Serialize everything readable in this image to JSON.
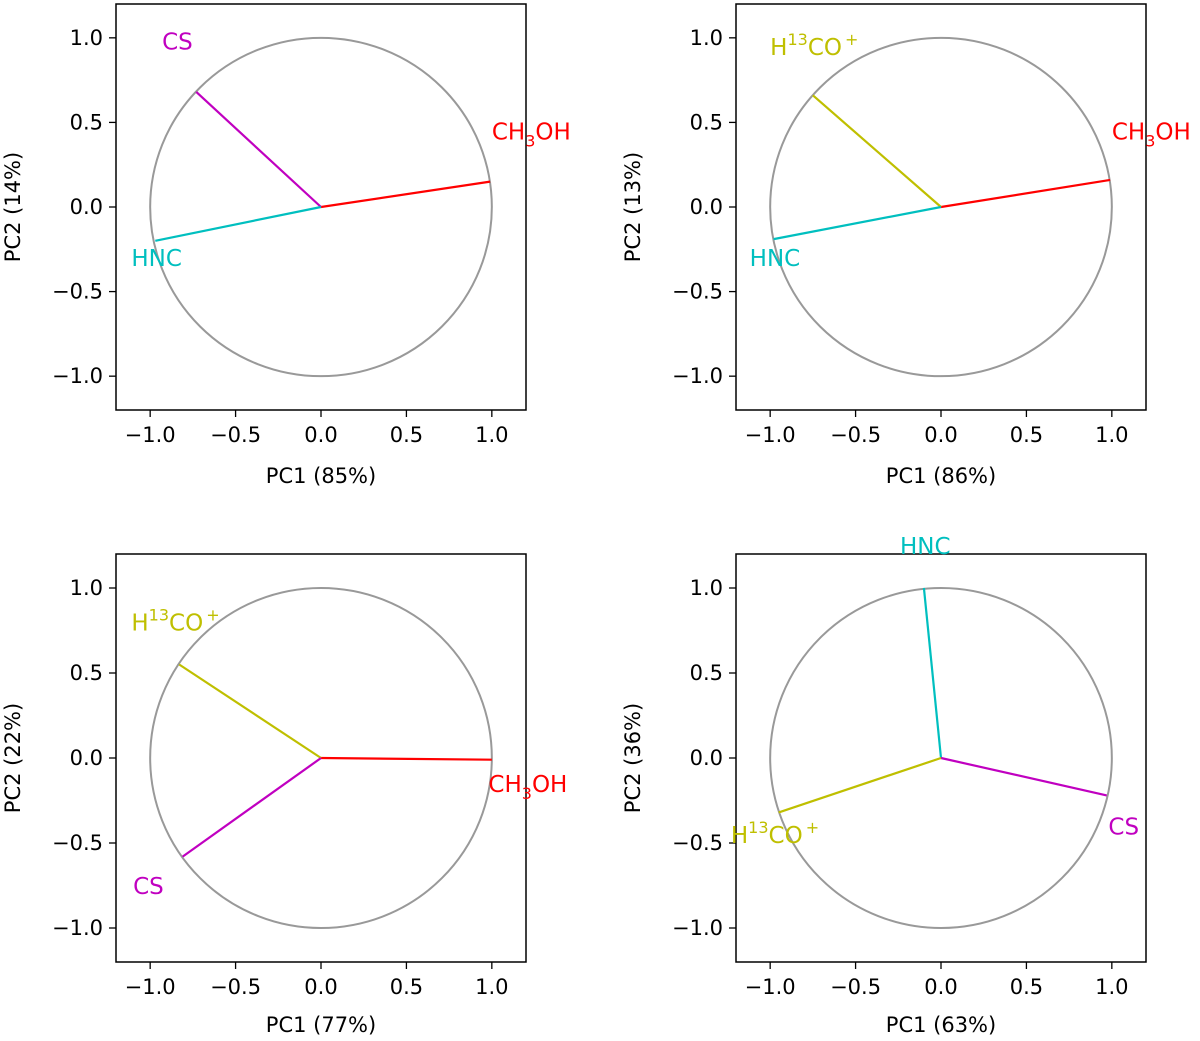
{
  "chart_data": [
    {
      "type": "line",
      "xlabel": "PC1 (85%)",
      "ylabel": "PC2 (14%)",
      "xlim": [
        -1.2,
        1.2
      ],
      "ylim": [
        -1.2,
        1.2
      ],
      "xticks": [
        -1.0,
        -0.5,
        0.0,
        0.5,
        1.0
      ],
      "yticks": [
        -1.0,
        -0.5,
        0.0,
        0.5,
        1.0
      ],
      "xtick_labels": [
        "−1.0",
        "−0.5",
        "0.0",
        "0.5",
        "1.0"
      ],
      "ytick_labels": [
        "−1.0",
        "−0.5",
        "0.0",
        "0.5",
        "1.0"
      ],
      "unit_circle": true,
      "vectors": [
        {
          "name": "CH3OH",
          "label": {
            "base": "CH",
            "sub": "3",
            "tail": "OH"
          },
          "color": "#ff0000",
          "x": 0.99,
          "y": 0.15,
          "label_x": 1.0,
          "label_y": 0.4
        },
        {
          "name": "CS",
          "label": {
            "base": "CS"
          },
          "color": "#c000c0",
          "x": -0.73,
          "y": 0.68,
          "label_x": -0.93,
          "label_y": 0.93
        },
        {
          "name": "HNC",
          "label": {
            "base": "HNC"
          },
          "color": "#00bfbf",
          "x": -0.97,
          "y": -0.2,
          "label_x": -1.11,
          "label_y": -0.35
        }
      ]
    },
    {
      "type": "line",
      "xlabel": "PC1 (86%)",
      "ylabel": "PC2 (13%)",
      "xlim": [
        -1.2,
        1.2
      ],
      "ylim": [
        -1.2,
        1.2
      ],
      "xticks": [
        -1.0,
        -0.5,
        0.0,
        0.5,
        1.0
      ],
      "yticks": [
        -1.0,
        -0.5,
        0.0,
        0.5,
        1.0
      ],
      "xtick_labels": [
        "−1.0",
        "−0.5",
        "0.0",
        "0.5",
        "1.0"
      ],
      "ytick_labels": [
        "−1.0",
        "−0.5",
        "0.0",
        "0.5",
        "1.0"
      ],
      "unit_circle": true,
      "vectors": [
        {
          "name": "CH3OH",
          "label": {
            "base": "CH",
            "sub": "3",
            "tail": "OH"
          },
          "color": "#ff0000",
          "x": 0.99,
          "y": 0.16,
          "label_x": 1.0,
          "label_y": 0.4
        },
        {
          "name": "H13CO+",
          "label": {
            "base": "H",
            "sup": "13",
            "tail": "CO",
            "sup2": "+"
          },
          "color": "#bfbf00",
          "x": -0.75,
          "y": 0.66,
          "label_x": -1.0,
          "label_y": 0.9
        },
        {
          "name": "HNC",
          "label": {
            "base": "HNC"
          },
          "color": "#00bfbf",
          "x": -0.98,
          "y": -0.19,
          "label_x": -1.12,
          "label_y": -0.35
        }
      ]
    },
    {
      "type": "line",
      "xlabel": "PC1 (77%)",
      "ylabel": "PC2 (22%)",
      "xlim": [
        -1.2,
        1.2
      ],
      "ylim": [
        -1.2,
        1.2
      ],
      "xticks": [
        -1.0,
        -0.5,
        0.0,
        0.5,
        1.0
      ],
      "yticks": [
        -1.0,
        -0.5,
        0.0,
        0.5,
        1.0
      ],
      "xtick_labels": [
        "−1.0",
        "−0.5",
        "0.0",
        "0.5",
        "1.0"
      ],
      "ytick_labels": [
        "−1.0",
        "−0.5",
        "0.0",
        "0.5",
        "1.0"
      ],
      "unit_circle": true,
      "vectors": [
        {
          "name": "CH3OH",
          "label": {
            "base": "CH",
            "sub": "3",
            "tail": "OH"
          },
          "color": "#ff0000",
          "x": 1.0,
          "y": -0.01,
          "label_x": 0.98,
          "label_y": -0.2
        },
        {
          "name": "H13CO+",
          "label": {
            "base": "H",
            "sup": "13",
            "tail": "CO",
            "sup2": "+"
          },
          "color": "#bfbf00",
          "x": -0.83,
          "y": 0.55,
          "label_x": -1.11,
          "label_y": 0.75
        },
        {
          "name": "CS",
          "label": {
            "base": "CS"
          },
          "color": "#c000c0",
          "x": -0.81,
          "y": -0.58,
          "label_x": -1.1,
          "label_y": -0.8
        }
      ]
    },
    {
      "type": "line",
      "xlabel": "PC1 (63%)",
      "ylabel": "PC2 (36%)",
      "xlim": [
        -1.2,
        1.2
      ],
      "ylim": [
        -1.2,
        1.2
      ],
      "xticks": [
        -1.0,
        -0.5,
        0.0,
        0.5,
        1.0
      ],
      "yticks": [
        -1.0,
        -0.5,
        0.0,
        0.5,
        1.0
      ],
      "xtick_labels": [
        "−1.0",
        "−0.5",
        "0.0",
        "0.5",
        "1.0"
      ],
      "ytick_labels": [
        "−1.0",
        "−0.5",
        "0.0",
        "0.5",
        "1.0"
      ],
      "unit_circle": true,
      "vectors": [
        {
          "name": "HNC",
          "label": {
            "base": "HNC"
          },
          "color": "#00bfbf",
          "x": -0.1,
          "y": 1.0,
          "label_x": -0.24,
          "label_y": 1.2
        },
        {
          "name": "CS",
          "label": {
            "base": "CS"
          },
          "color": "#c000c0",
          "x": 0.97,
          "y": -0.22,
          "label_x": 0.98,
          "label_y": -0.45
        },
        {
          "name": "H13CO+",
          "label": {
            "base": "H",
            "sup": "13",
            "tail": "CO",
            "sup2": "+"
          },
          "color": "#bfbf00",
          "x": -0.95,
          "y": -0.32,
          "label_x": -1.23,
          "label_y": -0.5
        }
      ]
    }
  ],
  "colors": {
    "circle": "#999999",
    "axis": "#000000",
    "text": "#000000"
  }
}
